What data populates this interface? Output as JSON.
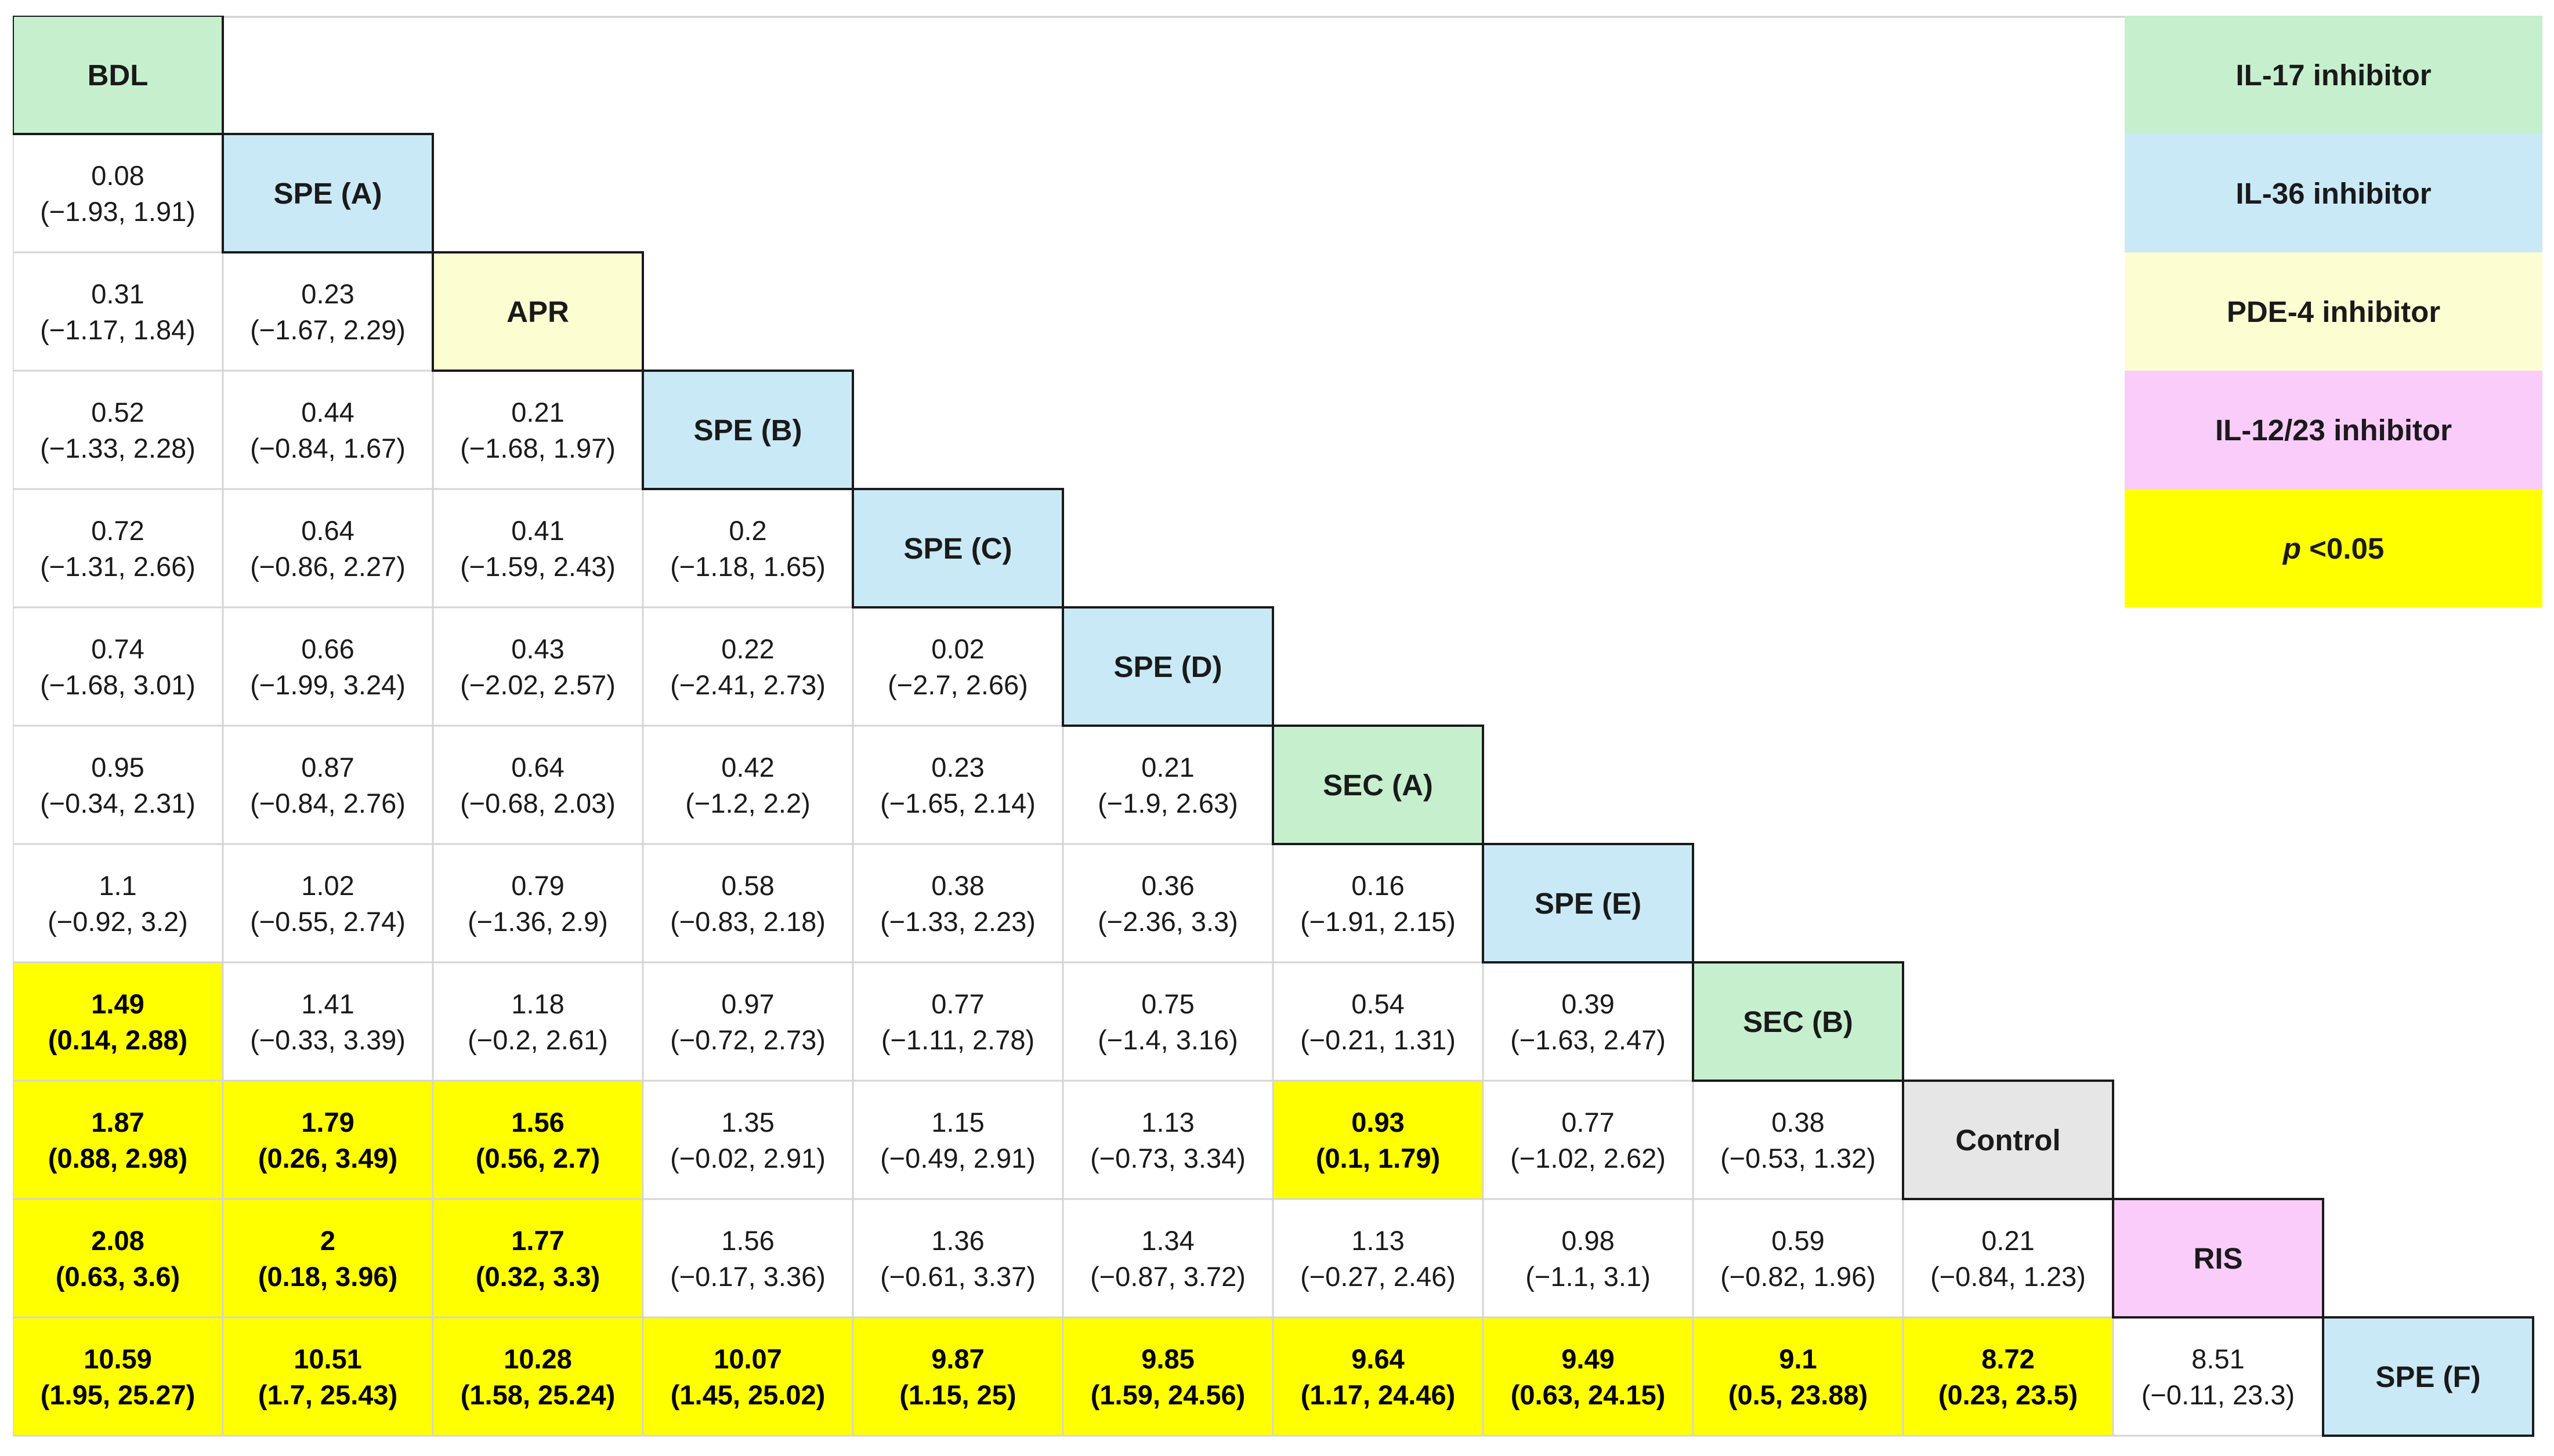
{
  "legend": [
    {
      "label": "IL-17 inhibitor",
      "key": "IL17",
      "color": "#c6efce"
    },
    {
      "label": "IL-36 inhibitor",
      "key": "IL36",
      "color": "#c9e9f6"
    },
    {
      "label": "PDE-4 inhibitor",
      "key": "PDE4",
      "color": "#fdfdd2"
    },
    {
      "label": "IL-12/23 inhibitor",
      "key": "IL1223",
      "color": "#f9ccf9"
    },
    {
      "label": "<0.05",
      "prefix": "p",
      "key": "SIG",
      "color": "#ffff00"
    }
  ],
  "chart_data": {
    "type": "table",
    "treatments": [
      {
        "label": "BDL",
        "class": "IL17"
      },
      {
        "label": "SPE (A)",
        "class": "IL36"
      },
      {
        "label": "APR",
        "class": "PDE4"
      },
      {
        "label": "SPE (B)",
        "class": "IL36"
      },
      {
        "label": "SPE (C)",
        "class": "IL36"
      },
      {
        "label": "SPE (D)",
        "class": "IL36"
      },
      {
        "label": "SEC (A)",
        "class": "IL17"
      },
      {
        "label": "SPE (E)",
        "class": "IL36"
      },
      {
        "label": "SEC (B)",
        "class": "IL17"
      },
      {
        "label": "Control",
        "class": "CONTROL"
      },
      {
        "label": "RIS",
        "class": "IL1223"
      },
      {
        "label": "SPE (F)",
        "class": "IL36"
      }
    ],
    "class_colors": {
      "IL17": "#c6efce",
      "IL36": "#c9e9f6",
      "PDE4": "#fdfdd2",
      "IL1223": "#f9ccf9",
      "CONTROL": "#e7e6e6",
      "SIG": "#ffff00"
    },
    "rows": [
      [],
      [
        {
          "est": "0.08",
          "ci": "(−1.93, 1.91)",
          "sig": false
        }
      ],
      [
        {
          "est": "0.31",
          "ci": "(−1.17, 1.84)",
          "sig": false
        },
        {
          "est": "0.23",
          "ci": "(−1.67, 2.29)",
          "sig": false
        }
      ],
      [
        {
          "est": "0.52",
          "ci": "(−1.33, 2.28)",
          "sig": false
        },
        {
          "est": "0.44",
          "ci": "(−0.84, 1.67)",
          "sig": false
        },
        {
          "est": "0.21",
          "ci": "(−1.68, 1.97)",
          "sig": false
        }
      ],
      [
        {
          "est": "0.72",
          "ci": "(−1.31, 2.66)",
          "sig": false
        },
        {
          "est": "0.64",
          "ci": "(−0.86, 2.27)",
          "sig": false
        },
        {
          "est": "0.41",
          "ci": "(−1.59, 2.43)",
          "sig": false
        },
        {
          "est": "0.2",
          "ci": "(−1.18, 1.65)",
          "sig": false
        }
      ],
      [
        {
          "est": "0.74",
          "ci": "(−1.68, 3.01)",
          "sig": false
        },
        {
          "est": "0.66",
          "ci": "(−1.99, 3.24)",
          "sig": false
        },
        {
          "est": "0.43",
          "ci": "(−2.02, 2.57)",
          "sig": false
        },
        {
          "est": "0.22",
          "ci": "(−2.41, 2.73)",
          "sig": false
        },
        {
          "est": "0.02",
          "ci": "(−2.7, 2.66)",
          "sig": false
        }
      ],
      [
        {
          "est": "0.95",
          "ci": "(−0.34, 2.31)",
          "sig": false
        },
        {
          "est": "0.87",
          "ci": "(−0.84, 2.76)",
          "sig": false
        },
        {
          "est": "0.64",
          "ci": "(−0.68, 2.03)",
          "sig": false
        },
        {
          "est": "0.42",
          "ci": "(−1.2, 2.2)",
          "sig": false
        },
        {
          "est": "0.23",
          "ci": "(−1.65, 2.14)",
          "sig": false
        },
        {
          "est": "0.21",
          "ci": "(−1.9, 2.63)",
          "sig": false
        }
      ],
      [
        {
          "est": "1.1",
          "ci": "(−0.92, 3.2)",
          "sig": false
        },
        {
          "est": "1.02",
          "ci": "(−0.55, 2.74)",
          "sig": false
        },
        {
          "est": "0.79",
          "ci": "(−1.36, 2.9)",
          "sig": false
        },
        {
          "est": "0.58",
          "ci": "(−0.83, 2.18)",
          "sig": false
        },
        {
          "est": "0.38",
          "ci": "(−1.33, 2.23)",
          "sig": false
        },
        {
          "est": "0.36",
          "ci": "(−2.36, 3.3)",
          "sig": false
        },
        {
          "est": "0.16",
          "ci": "(−1.91, 2.15)",
          "sig": false
        }
      ],
      [
        {
          "est": "1.49",
          "ci": "(0.14, 2.88)",
          "sig": true
        },
        {
          "est": "1.41",
          "ci": "(−0.33, 3.39)",
          "sig": false
        },
        {
          "est": "1.18",
          "ci": "(−0.2, 2.61)",
          "sig": false
        },
        {
          "est": "0.97",
          "ci": "(−0.72, 2.73)",
          "sig": false
        },
        {
          "est": "0.77",
          "ci": "(−1.11, 2.78)",
          "sig": false
        },
        {
          "est": "0.75",
          "ci": "(−1.4, 3.16)",
          "sig": false
        },
        {
          "est": "0.54",
          "ci": "(−0.21, 1.31)",
          "sig": false
        },
        {
          "est": "0.39",
          "ci": "(−1.63, 2.47)",
          "sig": false
        }
      ],
      [
        {
          "est": "1.87",
          "ci": "(0.88, 2.98)",
          "sig": true
        },
        {
          "est": "1.79",
          "ci": "(0.26, 3.49)",
          "sig": true
        },
        {
          "est": "1.56",
          "ci": "(0.56, 2.7)",
          "sig": true
        },
        {
          "est": "1.35",
          "ci": "(−0.02, 2.91)",
          "sig": false
        },
        {
          "est": "1.15",
          "ci": "(−0.49, 2.91)",
          "sig": false
        },
        {
          "est": "1.13",
          "ci": "(−0.73, 3.34)",
          "sig": false
        },
        {
          "est": "0.93",
          "ci": "(0.1, 1.79)",
          "sig": true
        },
        {
          "est": "0.77",
          "ci": "(−1.02, 2.62)",
          "sig": false
        },
        {
          "est": "0.38",
          "ci": "(−0.53, 1.32)",
          "sig": false
        }
      ],
      [
        {
          "est": "2.08",
          "ci": "(0.63, 3.6)",
          "sig": true
        },
        {
          "est": "2",
          "ci": "(0.18, 3.96)",
          "sig": true
        },
        {
          "est": "1.77",
          "ci": "(0.32, 3.3)",
          "sig": true
        },
        {
          "est": "1.56",
          "ci": "(−0.17, 3.36)",
          "sig": false
        },
        {
          "est": "1.36",
          "ci": "(−0.61, 3.37)",
          "sig": false
        },
        {
          "est": "1.34",
          "ci": "(−0.87, 3.72)",
          "sig": false
        },
        {
          "est": "1.13",
          "ci": "(−0.27, 2.46)",
          "sig": false
        },
        {
          "est": "0.98",
          "ci": "(−1.1, 3.1)",
          "sig": false
        },
        {
          "est": "0.59",
          "ci": "(−0.82, 1.96)",
          "sig": false
        },
        {
          "est": "0.21",
          "ci": "(−0.84, 1.23)",
          "sig": false
        }
      ],
      [
        {
          "est": "10.59",
          "ci": "(1.95, 25.27)",
          "sig": true
        },
        {
          "est": "10.51",
          "ci": "(1.7, 25.43)",
          "sig": true
        },
        {
          "est": "10.28",
          "ci": "(1.58, 25.24)",
          "sig": true
        },
        {
          "est": "10.07",
          "ci": "(1.45, 25.02)",
          "sig": true
        },
        {
          "est": "9.87",
          "ci": "(1.15, 25)",
          "sig": true
        },
        {
          "est": "9.85",
          "ci": "(1.59, 24.56)",
          "sig": true
        },
        {
          "est": "9.64",
          "ci": "(1.17, 24.46)",
          "sig": true
        },
        {
          "est": "9.49",
          "ci": "(0.63, 24.15)",
          "sig": true
        },
        {
          "est": "9.1",
          "ci": "(0.5, 23.88)",
          "sig": true
        },
        {
          "est": "8.72",
          "ci": "(0.23, 23.5)",
          "sig": true
        },
        {
          "est": "8.51",
          "ci": "(−0.11, 23.3)",
          "sig": false
        }
      ]
    ]
  }
}
